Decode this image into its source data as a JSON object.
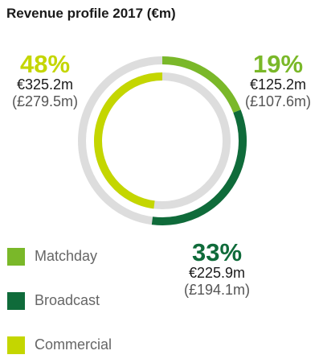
{
  "chart_data": {
    "type": "pie",
    "title": "Revenue profile 2017 (€m)",
    "slices": [
      {
        "key": "matchday",
        "name": "Matchday",
        "percent": 19,
        "value_eur": "€125.2m",
        "value_gbp": "(£107.6m)",
        "amount_eur_m": 125.2,
        "amount_gbp_m": 107.6,
        "color": "#7ab829"
      },
      {
        "key": "broadcast",
        "name": "Broadcast",
        "percent": 33,
        "value_eur": "€225.9m",
        "value_gbp": "(£194.1m)",
        "amount_eur_m": 225.9,
        "amount_gbp_m": 194.1,
        "color": "#0f6b3a"
      },
      {
        "key": "commercial",
        "name": "Commercial",
        "percent": 48,
        "value_eur": "€325.2m",
        "value_gbp": "(£279.5m)",
        "amount_eur_m": 325.2,
        "amount_gbp_m": 279.5,
        "color": "#c4d600"
      }
    ],
    "legend_position": "bottom-left",
    "track_color": "#dddddd"
  }
}
